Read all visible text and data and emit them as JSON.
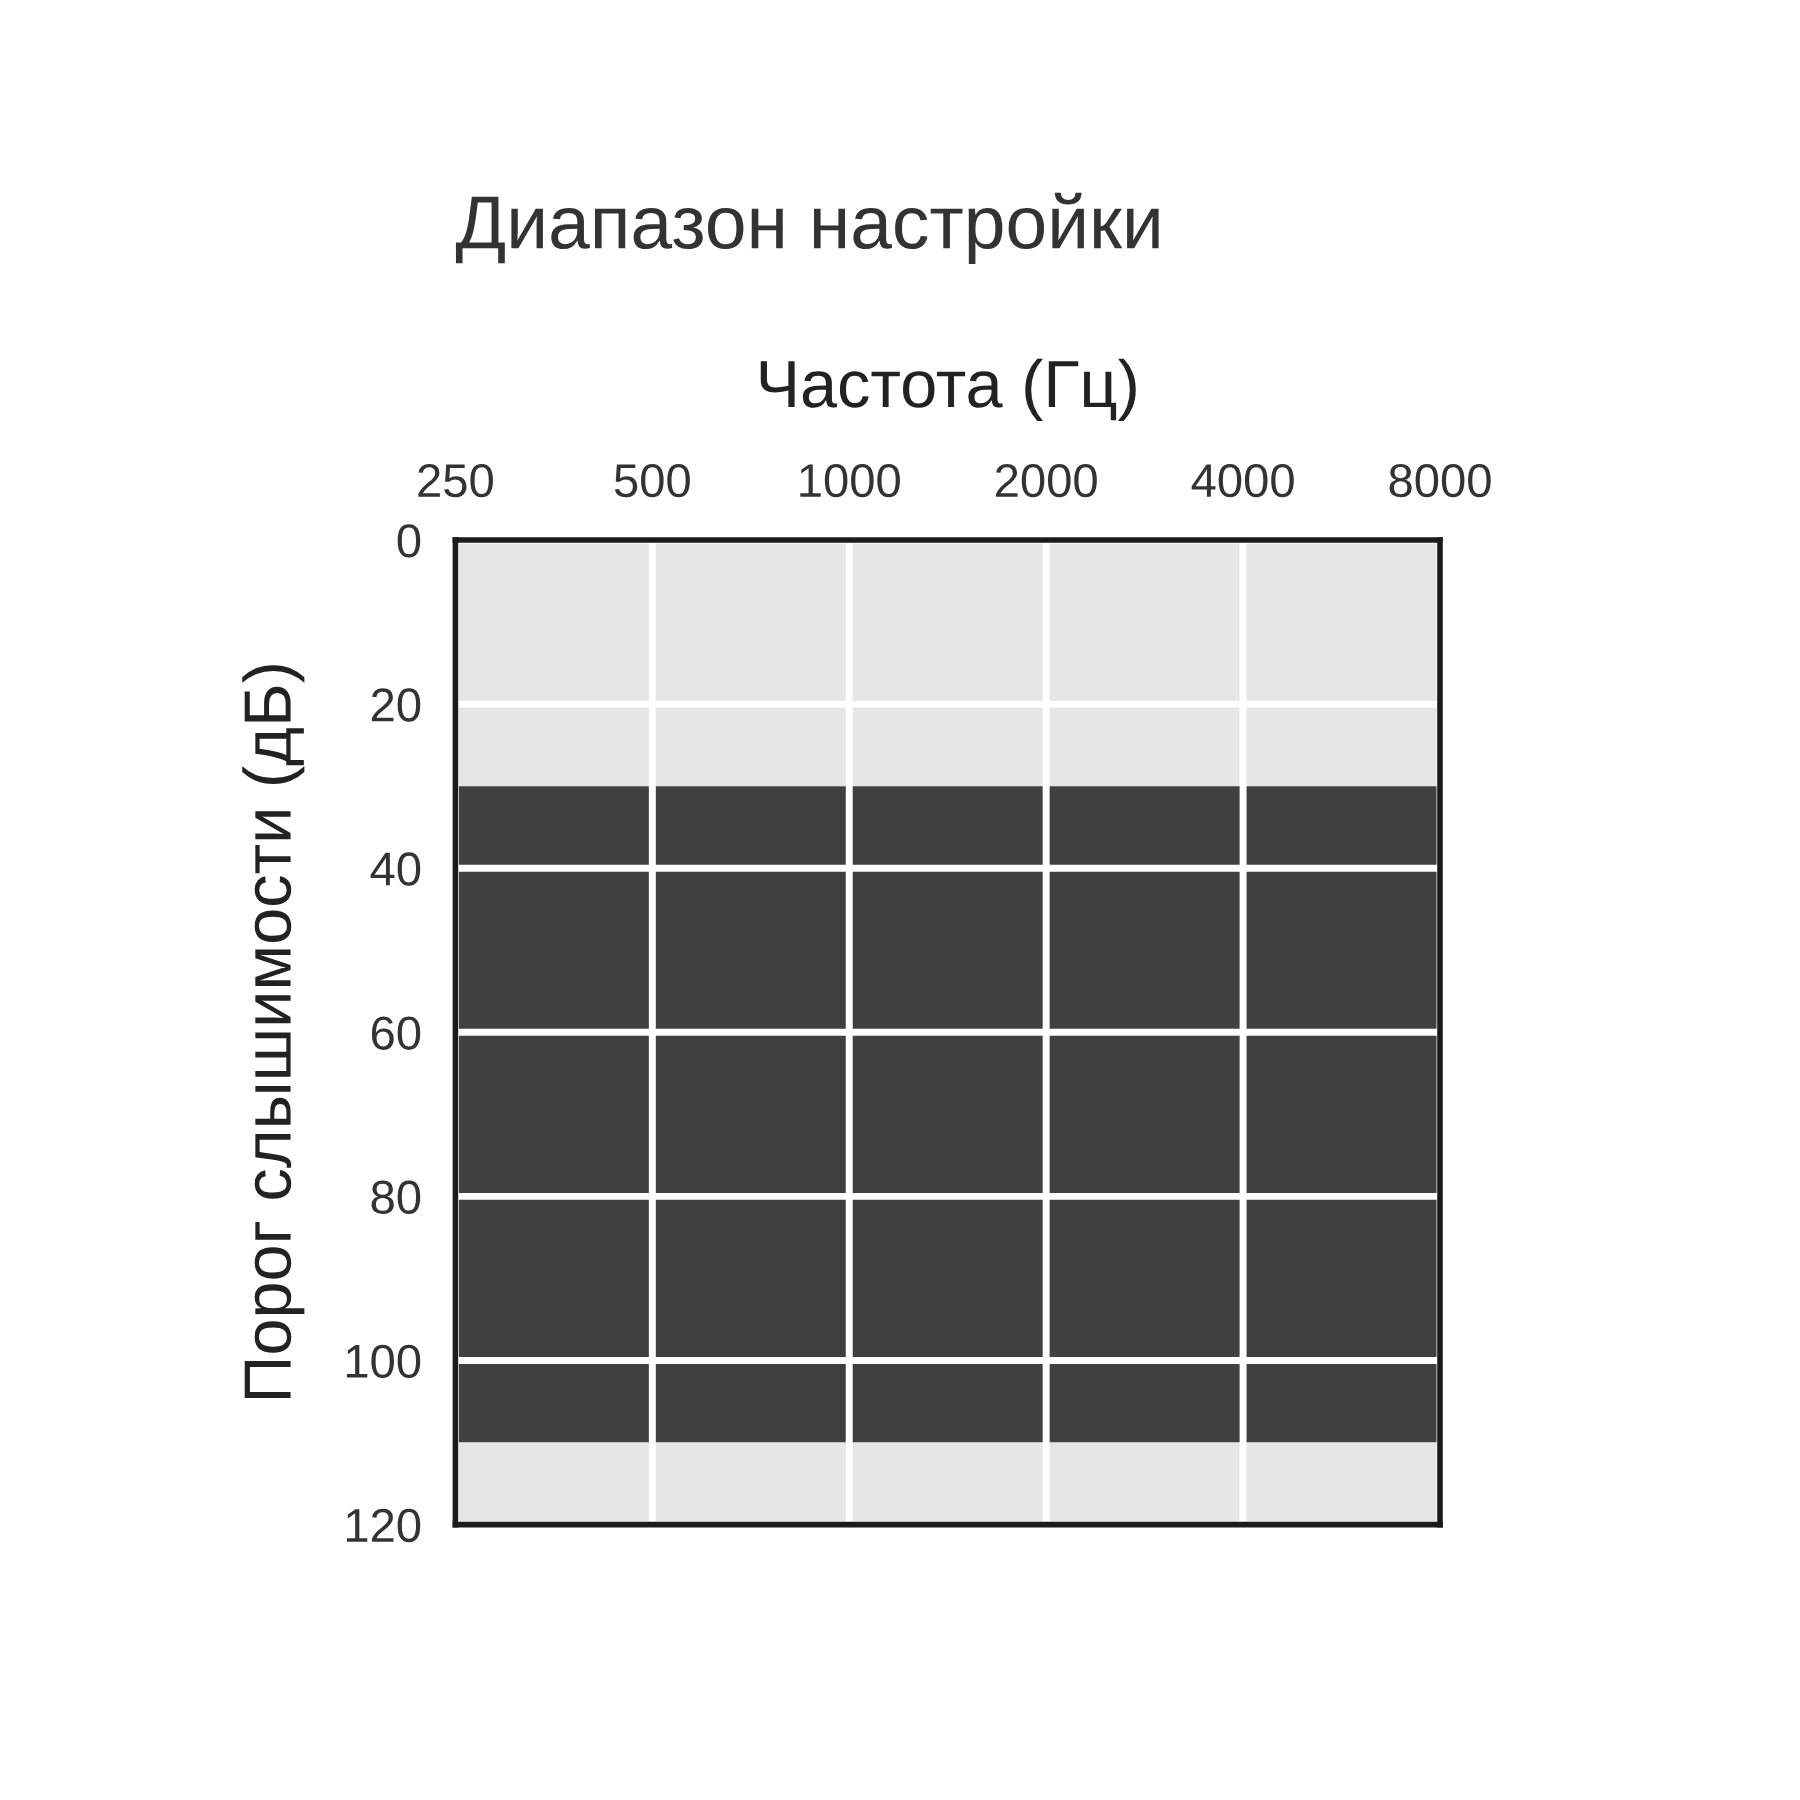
{
  "chart_data": {
    "type": "area",
    "stacked": true,
    "title": "Диапазон настройки",
    "xlabel": "Частота (Гц)",
    "ylabel": "Порог слышимости (дБ)",
    "x": [
      250,
      8000
    ],
    "series": [
      {
        "color": "#e6e6e6",
        "values": [
          30,
          30
        ]
      },
      {
        "color": "#404040",
        "values": [
          80,
          80
        ]
      },
      {
        "color": "#e6e6e6",
        "values": [
          10,
          10
        ]
      }
    ],
    "log": "x",
    "xlim": [
      250,
      8000
    ],
    "xticks": [
      250,
      500,
      1000,
      2000,
      4000,
      8000
    ],
    "ylim": [
      120,
      0
    ],
    "yticks": [
      0,
      20,
      40,
      60,
      80,
      100,
      120
    ],
    "grid": true
  }
}
